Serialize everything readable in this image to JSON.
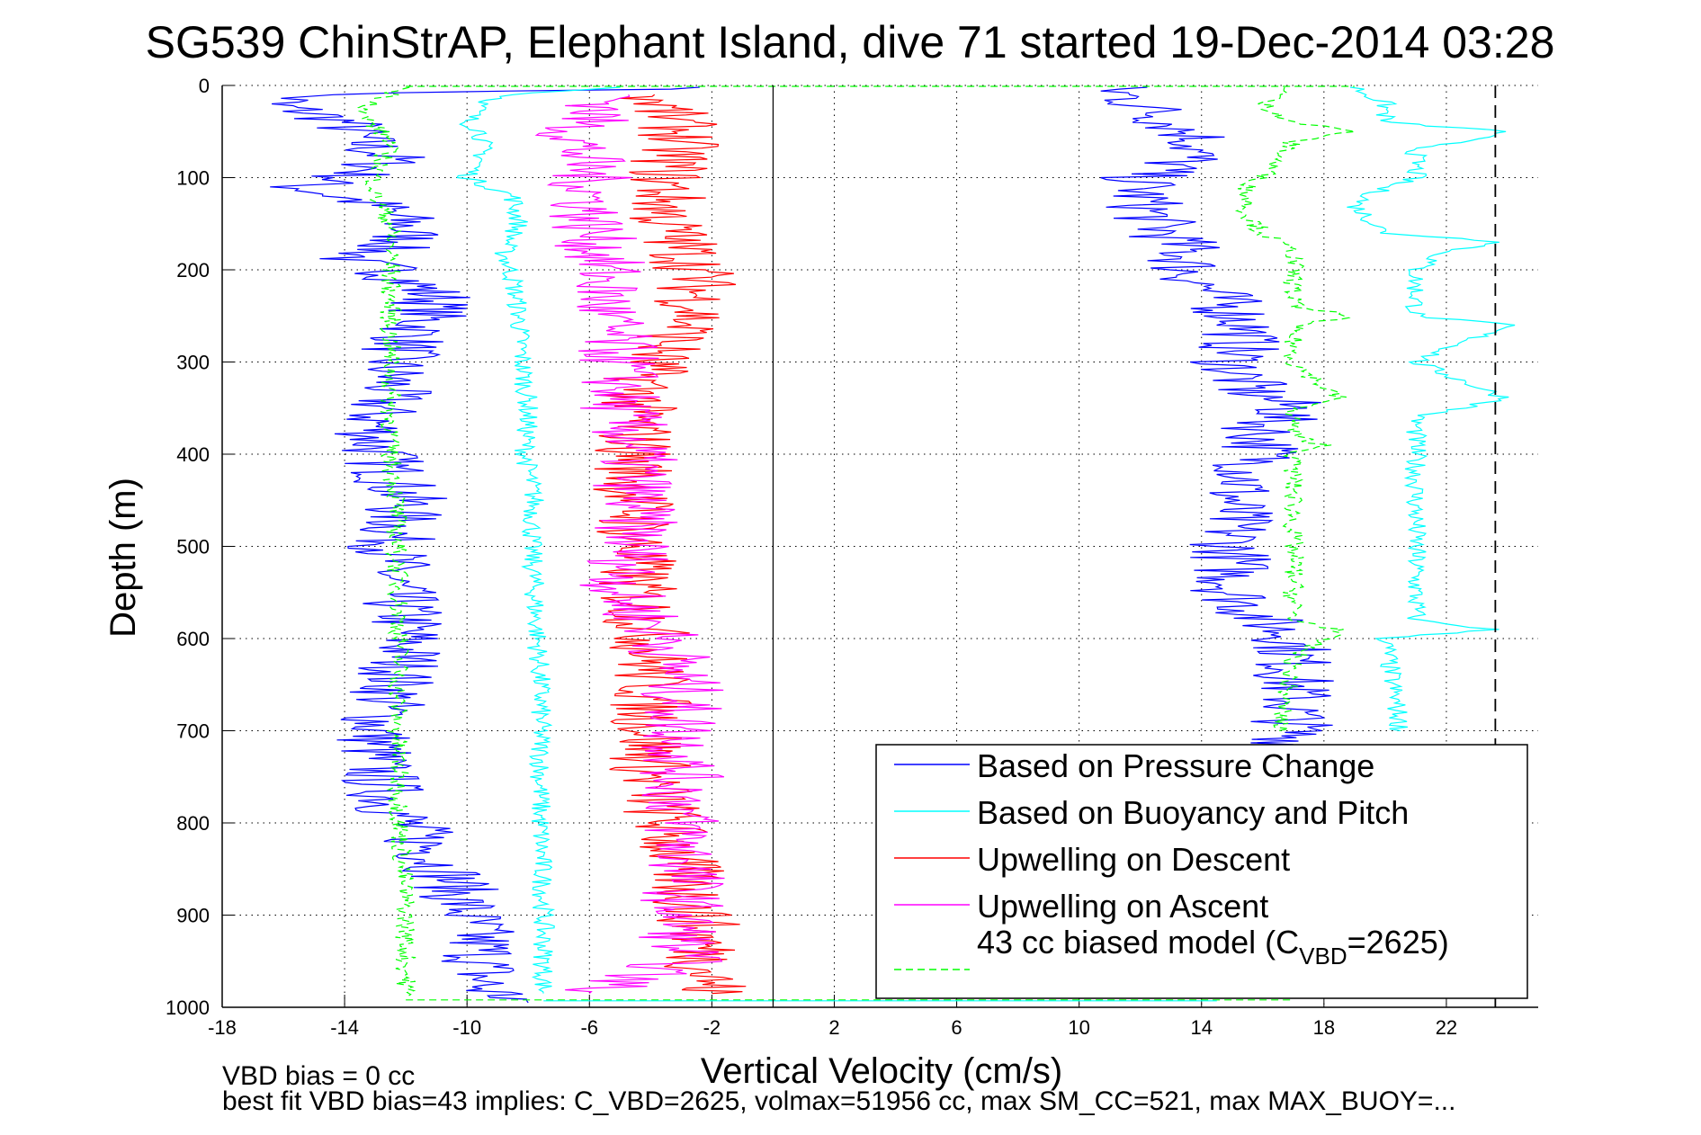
{
  "chart_data": {
    "type": "line",
    "title": "SG539 ChinStrAP, Elephant Island, dive 71 started 19-Dec-2014 03:28",
    "xlabel": "Vertical Velocity (cm/s)",
    "ylabel": "Depth (m)",
    "xlim": [
      -18,
      25
    ],
    "ylim": [
      0,
      1000
    ],
    "y_reversed": true,
    "grid": true,
    "x_ticks": [
      -18,
      -14,
      -10,
      -6,
      -2,
      2,
      6,
      10,
      14,
      18,
      22
    ],
    "y_ticks": [
      0,
      100,
      200,
      300,
      400,
      500,
      600,
      700,
      800,
      900,
      1000
    ],
    "reference_lines": [
      {
        "orientation": "vertical",
        "x": 0,
        "style": "solid",
        "color": "#000000"
      },
      {
        "orientation": "vertical",
        "x": 23.6,
        "style": "dashed",
        "color": "#000000"
      }
    ],
    "legend": {
      "placement": "bottom-right",
      "entries": [
        {
          "label": "Based on Pressure Change",
          "color": "#0000ff",
          "style": "solid"
        },
        {
          "label": "Based on Buoyancy and Pitch",
          "color": "#00ffff",
          "style": "solid"
        },
        {
          "label": "Upwelling on Descent",
          "color": "#ff0000",
          "style": "solid"
        },
        {
          "label": "Upwelling on Ascent",
          "color": "#ff00ff",
          "style": "solid"
        },
        {
          "label_prefix": "43 cc biased model (C",
          "label_sub": "VBD",
          "label_suffix": "=2625)",
          "color": "#00ff00",
          "style": "dashed"
        }
      ]
    },
    "series": [
      {
        "name": "Based on Pressure Change (descent)",
        "color": "#0000ff",
        "style": "solid",
        "points": [
          [
            -1,
            2
          ],
          [
            -15,
            10
          ],
          [
            -16.5,
            20
          ],
          [
            -15,
            30
          ],
          [
            -14,
            40
          ],
          [
            -13.5,
            60
          ],
          [
            -12.5,
            80
          ],
          [
            -13.5,
            95
          ],
          [
            -14,
            100
          ],
          [
            -15.5,
            110
          ],
          [
            -13,
            130
          ],
          [
            -12,
            150
          ],
          [
            -12,
            170
          ],
          [
            -14,
            190
          ],
          [
            -12.5,
            200
          ],
          [
            -11,
            230
          ],
          [
            -11.5,
            260
          ],
          [
            -12.5,
            300
          ],
          [
            -12.5,
            330
          ],
          [
            -13,
            360
          ],
          [
            -13,
            390
          ],
          [
            -12.5,
            420
          ],
          [
            -12,
            450
          ],
          [
            -12.5,
            500
          ],
          [
            -12.5,
            540
          ],
          [
            -12,
            580
          ],
          [
            -12,
            620
          ],
          [
            -12.5,
            660
          ],
          [
            -13,
            700
          ],
          [
            -13,
            740
          ],
          [
            -12.5,
            780
          ],
          [
            -11.5,
            820
          ],
          [
            -10.5,
            860
          ],
          [
            -10,
            900
          ],
          [
            -9.5,
            940
          ],
          [
            -9.5,
            980
          ],
          [
            -8,
            995
          ]
        ]
      },
      {
        "name": "Based on Pressure Change (ascent)",
        "color": "#0000ff",
        "style": "solid",
        "points": [
          [
            11,
            2
          ],
          [
            12,
            20
          ],
          [
            13,
            40
          ],
          [
            14,
            60
          ],
          [
            13.5,
            80
          ],
          [
            12,
            100
          ],
          [
            12,
            120
          ],
          [
            12.5,
            150
          ],
          [
            13.5,
            180
          ],
          [
            13.5,
            200
          ],
          [
            14.5,
            230
          ],
          [
            15.5,
            260
          ],
          [
            15,
            300
          ],
          [
            15.5,
            330
          ],
          [
            17,
            350
          ],
          [
            16,
            370
          ],
          [
            16,
            400
          ],
          [
            15,
            450
          ],
          [
            15,
            500
          ],
          [
            15,
            550
          ],
          [
            16,
            580
          ],
          [
            17,
            600
          ],
          [
            17,
            650
          ],
          [
            17,
            700
          ],
          [
            17,
            715
          ]
        ]
      },
      {
        "name": "Based on Buoyancy and Pitch (descent)",
        "color": "#00ffff",
        "style": "solid",
        "points": [
          [
            -5,
            2
          ],
          [
            -8.5,
            10
          ],
          [
            -9.5,
            20
          ],
          [
            -10,
            40
          ],
          [
            -9.5,
            50
          ],
          [
            -9.5,
            80
          ],
          [
            -10,
            100
          ],
          [
            -8.5,
            120
          ],
          [
            -8.3,
            150
          ],
          [
            -8.8,
            180
          ],
          [
            -8.5,
            210
          ],
          [
            -8.3,
            250
          ],
          [
            -8.2,
            300
          ],
          [
            -8,
            350
          ],
          [
            -8.1,
            400
          ],
          [
            -7.8,
            450
          ],
          [
            -7.9,
            500
          ],
          [
            -7.8,
            550
          ],
          [
            -7.7,
            600
          ],
          [
            -7.6,
            650
          ],
          [
            -7.6,
            700
          ],
          [
            -7.6,
            800
          ],
          [
            -7.5,
            900
          ],
          [
            -7.5,
            985
          ]
        ]
      },
      {
        "name": "Based on Buoyancy and Pitch (ascent)",
        "color": "#00ffff",
        "style": "solid",
        "points": [
          [
            19,
            2
          ],
          [
            20,
            20
          ],
          [
            20,
            40
          ],
          [
            24,
            50
          ],
          [
            21,
            70
          ],
          [
            21,
            100
          ],
          [
            20,
            110
          ],
          [
            19,
            130
          ],
          [
            20,
            160
          ],
          [
            24,
            170
          ],
          [
            22,
            180
          ],
          [
            21,
            200
          ],
          [
            21,
            250
          ],
          [
            24,
            260
          ],
          [
            21,
            300
          ],
          [
            24,
            340
          ],
          [
            21,
            360
          ],
          [
            21,
            400
          ],
          [
            21,
            500
          ],
          [
            21,
            580
          ],
          [
            23.5,
            590
          ],
          [
            20,
            600
          ],
          [
            20.5,
            700
          ]
        ]
      },
      {
        "name": "Upwelling on Descent",
        "color": "#ff0000",
        "style": "solid",
        "points": [
          [
            -4,
            10
          ],
          [
            -3,
            50
          ],
          [
            -3.5,
            100
          ],
          [
            -3.5,
            150
          ],
          [
            -2.5,
            200
          ],
          [
            -2.5,
            250
          ],
          [
            -4,
            300
          ],
          [
            -4.5,
            350
          ],
          [
            -4.5,
            400
          ],
          [
            -4.5,
            450
          ],
          [
            -4.5,
            500
          ],
          [
            -4.5,
            550
          ],
          [
            -4,
            600
          ],
          [
            -4,
            650
          ],
          [
            -4,
            700
          ],
          [
            -4,
            750
          ],
          [
            -3.5,
            800
          ],
          [
            -3,
            850
          ],
          [
            -2.5,
            900
          ],
          [
            -2.2,
            950
          ],
          [
            -2,
            985
          ]
        ]
      },
      {
        "name": "Upwelling on Ascent",
        "color": "#ff00ff",
        "style": "solid",
        "points": [
          [
            -5,
            10
          ],
          [
            -6.5,
            50
          ],
          [
            -6,
            100
          ],
          [
            -6,
            150
          ],
          [
            -5.5,
            200
          ],
          [
            -5.5,
            250
          ],
          [
            -5,
            300
          ],
          [
            -5,
            350
          ],
          [
            -4.5,
            400
          ],
          [
            -4.5,
            450
          ],
          [
            -4.5,
            500
          ],
          [
            -5,
            550
          ],
          [
            -3.5,
            600
          ],
          [
            -3,
            650
          ],
          [
            -3,
            700
          ],
          [
            -3,
            750
          ],
          [
            -3,
            800
          ],
          [
            -2.8,
            850
          ],
          [
            -3,
            900
          ],
          [
            -3,
            950
          ],
          [
            -6,
            985
          ]
        ]
      },
      {
        "name": "43 cc biased model (descent)",
        "color": "#00ff00",
        "style": "dashed",
        "points": [
          [
            -12,
            2
          ],
          [
            -12.5,
            10
          ],
          [
            -13.5,
            30
          ],
          [
            -12.5,
            60
          ],
          [
            -13,
            100
          ],
          [
            -13,
            120
          ],
          [
            -12.5,
            150
          ],
          [
            -12.5,
            200
          ],
          [
            -12.5,
            240
          ],
          [
            -12.5,
            300
          ],
          [
            -12.5,
            350
          ],
          [
            -12.5,
            400
          ],
          [
            -12.3,
            450
          ],
          [
            -12.3,
            500
          ],
          [
            -12.2,
            600
          ],
          [
            -12.3,
            700
          ],
          [
            -12.2,
            800
          ],
          [
            -12,
            900
          ],
          [
            -12,
            990
          ]
        ]
      },
      {
        "name": "43 cc biased model (ascent)",
        "color": "#00ff00",
        "style": "dashed",
        "points": [
          [
            17,
            2
          ],
          [
            16,
            20
          ],
          [
            17,
            40
          ],
          [
            19,
            50
          ],
          [
            17,
            60
          ],
          [
            16,
            100
          ],
          [
            15.5,
            110
          ],
          [
            15.5,
            140
          ],
          [
            16,
            160
          ],
          [
            17,
            180
          ],
          [
            17,
            200
          ],
          [
            17,
            240
          ],
          [
            19,
            250
          ],
          [
            17,
            260
          ],
          [
            17,
            300
          ],
          [
            18.5,
            340
          ],
          [
            17,
            350
          ],
          [
            17,
            380
          ],
          [
            18,
            390
          ],
          [
            17,
            400
          ],
          [
            17,
            500
          ],
          [
            17,
            580
          ],
          [
            18.5,
            590
          ],
          [
            17,
            620
          ],
          [
            16.5,
            700
          ]
        ]
      }
    ]
  },
  "footer": {
    "line1": "VBD bias = 0 cc",
    "line2": "best fit VBD bias=43 implies: C_VBD=2625, volmax=51956 cc, max SM_CC=521, max MAX_BUOY=..."
  }
}
